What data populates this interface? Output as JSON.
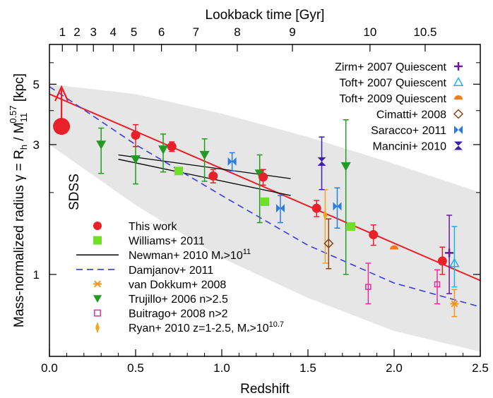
{
  "chart_data": {
    "type": "scatter",
    "xlabel": "Redshift",
    "top_xlabel": "Lookback time [Gyr]",
    "ylabel_main": "Mass-normalized radius γ = R",
    "ylabel_h": "h",
    "ylabel_mid": " / M",
    "ylabel_sub": "11",
    "ylabel_sup": "0.57",
    "ylabel_end": " [kpc]",
    "xlim": [
      0.0,
      2.5
    ],
    "ylim": [
      0.5,
      7.0
    ],
    "yscale": "log",
    "x_ticks": [
      "0.0",
      "0.5",
      "1.0",
      "1.5",
      "2.0",
      "2.5"
    ],
    "y_ticks": [
      "1",
      "3",
      "5"
    ],
    "top_ticks": [
      {
        "label": "1",
        "z": 0.075
      },
      {
        "label": "2",
        "z": 0.16
      },
      {
        "label": "3",
        "z": 0.255
      },
      {
        "label": "4",
        "z": 0.37
      },
      {
        "label": "5",
        "z": 0.49
      },
      {
        "label": "6",
        "z": 0.65
      },
      {
        "label": "7",
        "z": 0.85
      },
      {
        "label": "8",
        "z": 1.09
      },
      {
        "label": "9",
        "z": 1.41
      },
      {
        "label": "10",
        "z": 1.86
      },
      {
        "label": "10.5",
        "z": 2.18
      }
    ],
    "sdss_label": "SDSS",
    "colors": {
      "this_work": "#e8202a",
      "williams": "#6fe024",
      "newman": "#000000",
      "damjanov": "#3a3ae0",
      "vandokkum": "#f3941e",
      "trujillo": "#239a23",
      "buitrago": "#e92b9e",
      "ryan": "#f3a51e",
      "zirm": "#6a1b9a",
      "toft2007": "#20b0e8",
      "toft2009": "#f37a1e",
      "cimatti": "#8b4513",
      "saracco": "#2a7de0",
      "mancini": "#3b1fb0",
      "band": "#e6e6e6"
    },
    "band": {
      "x": [
        0.0,
        0.5,
        1.0,
        1.5,
        2.0,
        2.5
      ],
      "upper": [
        5.0,
        4.6,
        3.9,
        3.2,
        2.55,
        2.0
      ],
      "lower": [
        3.0,
        1.8,
        1.15,
        0.82,
        0.62,
        0.52
      ]
    },
    "fit_line": {
      "x": [
        0.0,
        2.5
      ],
      "y": [
        4.6,
        0.95
      ]
    },
    "newman": [
      {
        "x": [
          0.4,
          1.4
        ],
        "y": [
          2.75,
          2.25
        ]
      },
      {
        "x": [
          0.4,
          1.4
        ],
        "y": [
          2.65,
          1.95
        ]
      }
    ],
    "damjanov": {
      "x": [
        0.0,
        0.5,
        1.0,
        1.5,
        2.0,
        2.5
      ],
      "y": [
        4.9,
        3.0,
        1.95,
        1.28,
        0.93,
        0.76
      ]
    },
    "sdss": {
      "x": 0.07,
      "y": 3.5
    },
    "this_work": [
      {
        "x": 0.5,
        "y": 3.25,
        "err": [
          0.3,
          0.3
        ]
      },
      {
        "x": 0.71,
        "y": 2.95,
        "err": [
          0.12,
          0.12
        ]
      },
      {
        "x": 0.95,
        "y": 2.3,
        "err": [
          0.13,
          0.13
        ]
      },
      {
        "x": 1.24,
        "y": 2.28,
        "err": [
          0.15,
          0.15
        ]
      },
      {
        "x": 1.55,
        "y": 1.75,
        "err": [
          0.12,
          0.12
        ]
      },
      {
        "x": 1.88,
        "y": 1.4,
        "err": [
          0.12,
          0.12
        ]
      },
      {
        "x": 2.28,
        "y": 1.12,
        "err": [
          0.12,
          0.14
        ]
      }
    ],
    "williams": [
      {
        "x": 0.75,
        "y": 2.4
      },
      {
        "x": 1.25,
        "y": 1.85
      },
      {
        "x": 1.75,
        "y": 1.5
      }
    ],
    "trujillo": [
      {
        "x": 0.3,
        "y": 3.0,
        "err": [
          0.65,
          0.45
        ]
      },
      {
        "x": 0.5,
        "y": 2.65,
        "err": [
          0.5,
          0.3
        ]
      },
      {
        "x": 0.66,
        "y": 2.88,
        "err": [
          0.5,
          0.4
        ]
      },
      {
        "x": 0.9,
        "y": 2.75,
        "err": [
          0.55,
          0.4
        ]
      },
      {
        "x": 1.22,
        "y": 2.35,
        "err": [
          0.8,
          0.4
        ]
      },
      {
        "x": 1.72,
        "y": 2.5,
        "err": [
          1.5,
          1.2
        ]
      }
    ],
    "saracco": [
      {
        "x": 1.06,
        "y": 2.6,
        "err": [
          0.2,
          0.2
        ]
      },
      {
        "x": 1.34,
        "y": 1.75,
        "err": [
          0.2,
          0.2
        ]
      },
      {
        "x": 1.67,
        "y": 1.78,
        "err": [
          0.3,
          0.3
        ]
      }
    ],
    "mancini": [
      {
        "x": 1.58,
        "y": 2.6,
        "err": [
          0.55,
          0.6
        ]
      }
    ],
    "cimatti": [
      {
        "x": 1.62,
        "y": 1.3,
        "err": [
          0.25,
          0.3
        ]
      }
    ],
    "ryan": [
      {
        "x": 1.6,
        "y": 1.65,
        "err": [
          0.55,
          0.4
        ]
      }
    ],
    "toft2009": [
      {
        "x": 2.0,
        "y": 1.25
      }
    ],
    "buitrago": [
      {
        "x": 1.85,
        "y": 0.9,
        "err": [
          0.12,
          0.2
        ]
      },
      {
        "x": 2.25,
        "y": 0.92,
        "err": [
          0.14,
          0.12
        ]
      }
    ],
    "toft2007": [
      {
        "x": 2.35,
        "y": 1.1,
        "err": [
          0.2,
          0.4
        ]
      }
    ],
    "zirm": [
      {
        "x": 2.32,
        "y": 1.2,
        "err": [
          0.35,
          0.45
        ]
      }
    ],
    "vandokkum": [
      {
        "x": 2.35,
        "y": 0.78,
        "err": [
          0.08,
          0.1
        ]
      }
    ],
    "legend_right": [
      {
        "key": "zirm",
        "label": "Zirm+ 2007 Quiescent",
        "marker": "plus"
      },
      {
        "key": "toft2007",
        "label": "Toft+ 2007 Quiescent",
        "marker": "open-triangle"
      },
      {
        "key": "toft2009",
        "label": "Toft+ 2009 Quiescent",
        "marker": "half-circle"
      },
      {
        "key": "cimatti",
        "label": "Cimatti+ 2008",
        "marker": "open-diamond"
      },
      {
        "key": "saracco",
        "label": "Saracco+ 2011",
        "marker": "bowtie"
      },
      {
        "key": "mancini",
        "label": "Mancini+ 2010",
        "marker": "hourglass"
      }
    ],
    "legend_left": [
      {
        "key": "this_work",
        "label": "This work",
        "marker": "circle"
      },
      {
        "key": "williams",
        "label": "Williams+ 2011",
        "marker": "square"
      },
      {
        "key": "newman",
        "label_main": "Newman+ 2010 M",
        "label_sub": "*",
        "label_mid": ">10",
        "label_sup": "11",
        "marker": "line"
      },
      {
        "key": "damjanov",
        "label": "Damjanov+ 2011",
        "marker": "dash"
      },
      {
        "key": "vandokkum",
        "label": "van Dokkum+ 2008",
        "marker": "asterisk"
      },
      {
        "key": "trujillo",
        "label": "Trujillo+ 2006 n>2.5",
        "marker": "down-triangle"
      },
      {
        "key": "buitrago",
        "label": "Buitrago+ 2008 n>2",
        "marker": "open-square"
      },
      {
        "key": "ryan",
        "label_main": "Ryan+ 2010 z=1-2.5, M",
        "label_sub": "*",
        "label_mid": ">10",
        "label_sup": "10.7",
        "marker": "star"
      }
    ]
  }
}
